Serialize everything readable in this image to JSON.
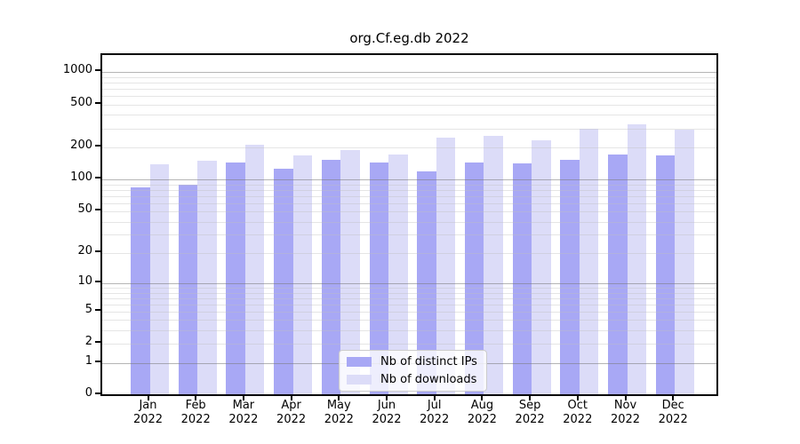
{
  "title": "org.Cf.eg.db 2022",
  "legend": {
    "items": [
      {
        "label": "Nb of distinct IPs",
        "color": "#a8a8f5"
      },
      {
        "label": "Nb of downloads",
        "color": "#dcdcf8"
      }
    ]
  },
  "chart_data": {
    "type": "bar",
    "title": "org.Cf.eg.db 2022",
    "categories": [
      "Jan",
      "Feb",
      "Mar",
      "Apr",
      "May",
      "Jun",
      "Jul",
      "Aug",
      "Sep",
      "Oct",
      "Nov",
      "Dec"
    ],
    "category_year": "2022",
    "series": [
      {
        "name": "Nb of distinct IPs",
        "color": "#a8a8f5",
        "values": [
          85,
          90,
          145,
          125,
          152,
          145,
          120,
          143,
          141,
          152,
          172,
          169
        ]
      },
      {
        "name": "Nb of downloads",
        "color": "#dcdcf8",
        "values": [
          138,
          150,
          212,
          168,
          188,
          172,
          245,
          257,
          233,
          300,
          330,
          292
        ]
      }
    ],
    "xlabel": "",
    "ylabel": "",
    "y_axis": {
      "scale": "log1p",
      "tick_values": [
        0,
        1,
        2,
        5,
        10,
        20,
        50,
        100,
        200,
        500,
        1000
      ],
      "tick_labels": [
        "0",
        "1",
        "2",
        "5",
        "10",
        "20",
        "50",
        "100",
        "200",
        "500",
        "1000"
      ],
      "major_gridlines": [
        1,
        10,
        100,
        1000
      ],
      "minor_gridlines": [
        2,
        3,
        4,
        5,
        6,
        7,
        8,
        9,
        20,
        30,
        40,
        50,
        60,
        70,
        80,
        90,
        200,
        300,
        400,
        500,
        600,
        700,
        800,
        900
      ],
      "ylim": [
        0,
        1440
      ]
    },
    "grid": true,
    "legend_position": "inside-bottom-center"
  }
}
